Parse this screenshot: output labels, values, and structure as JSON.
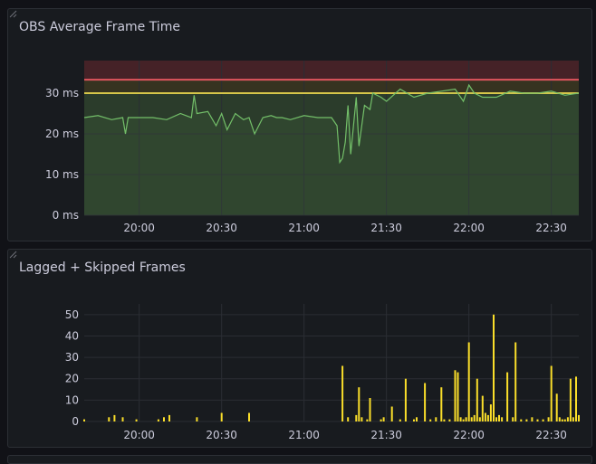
{
  "chart_data": [
    {
      "type": "line",
      "title": "OBS Average Frame Time",
      "unit": "ms",
      "x_ticks": [
        "20:00",
        "20:30",
        "21:00",
        "21:30",
        "22:00",
        "22:30"
      ],
      "y_ticks": [
        "0 ms",
        "10 ms",
        "20 ms",
        "30 ms"
      ],
      "x_range_minutes": [
        -20,
        160
      ],
      "ylim": [
        0,
        38
      ],
      "thresholds": [
        {
          "value": 30,
          "color": "#d6c64a"
        },
        {
          "value": 33.3,
          "color": "#e0555e"
        }
      ],
      "series": [
        {
          "color": "#73bf69",
          "x": [
            -20,
            -15,
            -10,
            -6,
            -5,
            -4,
            0,
            5,
            10,
            15,
            19,
            20,
            21,
            25,
            28,
            30,
            32,
            35,
            38,
            40,
            42,
            45,
            48,
            50,
            52,
            55,
            60,
            65,
            70,
            72,
            73,
            74,
            75,
            76,
            77,
            79,
            80,
            82,
            84,
            85,
            88,
            90,
            95,
            100,
            105,
            110,
            115,
            118,
            120,
            122,
            125,
            130,
            135,
            140,
            145,
            150,
            155,
            160
          ],
          "values": [
            24,
            24.5,
            23.5,
            24,
            20,
            24,
            24,
            24,
            23.5,
            25,
            24,
            29.5,
            25,
            25.5,
            22,
            25,
            21,
            25,
            23.5,
            24,
            20,
            24,
            24.5,
            24,
            24,
            23.5,
            24.5,
            24,
            24,
            22,
            13,
            14,
            18,
            27,
            15,
            29,
            17,
            27,
            26,
            30,
            29,
            28,
            31,
            29,
            30,
            30.5,
            31,
            28,
            32,
            30,
            29,
            29,
            30.5,
            30,
            30,
            30.5,
            29.5,
            30
          ]
        }
      ]
    },
    {
      "type": "bar",
      "title": "Lagged + Skipped Frames",
      "x_ticks": [
        "20:00",
        "20:30",
        "21:00",
        "21:30",
        "22:00",
        "22:30"
      ],
      "y_ticks": [
        "0",
        "10",
        "20",
        "30",
        "40",
        "50"
      ],
      "x_range_minutes": [
        -20,
        160
      ],
      "ylim": [
        0,
        55
      ],
      "color": "#fade2a",
      "x": [
        -20,
        -11,
        -9,
        -6,
        -1,
        7,
        9,
        11,
        21,
        30,
        40,
        74,
        76,
        79,
        80,
        81,
        83,
        84,
        88,
        89,
        92,
        95,
        97,
        100,
        101,
        104,
        106,
        108,
        110,
        111,
        113,
        115,
        116,
        117,
        118,
        119,
        120,
        121,
        122,
        123,
        124,
        125,
        126,
        127,
        128,
        129,
        130,
        131,
        132,
        134,
        136,
        137,
        139,
        141,
        143,
        145,
        147,
        149,
        150,
        152,
        153,
        154,
        155,
        156,
        157,
        158,
        159,
        160
      ],
      "values": [
        1,
        2,
        3,
        2,
        1,
        1,
        2,
        3,
        2,
        4,
        4,
        26,
        2,
        3,
        16,
        2,
        1,
        11,
        1,
        2,
        7,
        1,
        20,
        1,
        2,
        18,
        1,
        2,
        16,
        1,
        1,
        24,
        23,
        2,
        1,
        2,
        37,
        2,
        3,
        20,
        2,
        12,
        4,
        3,
        8,
        50,
        2,
        3,
        2,
        23,
        2,
        37,
        1,
        1,
        2,
        1,
        1,
        2,
        26,
        13,
        2,
        1,
        1,
        2,
        20,
        2,
        21,
        3
      ]
    }
  ]
}
